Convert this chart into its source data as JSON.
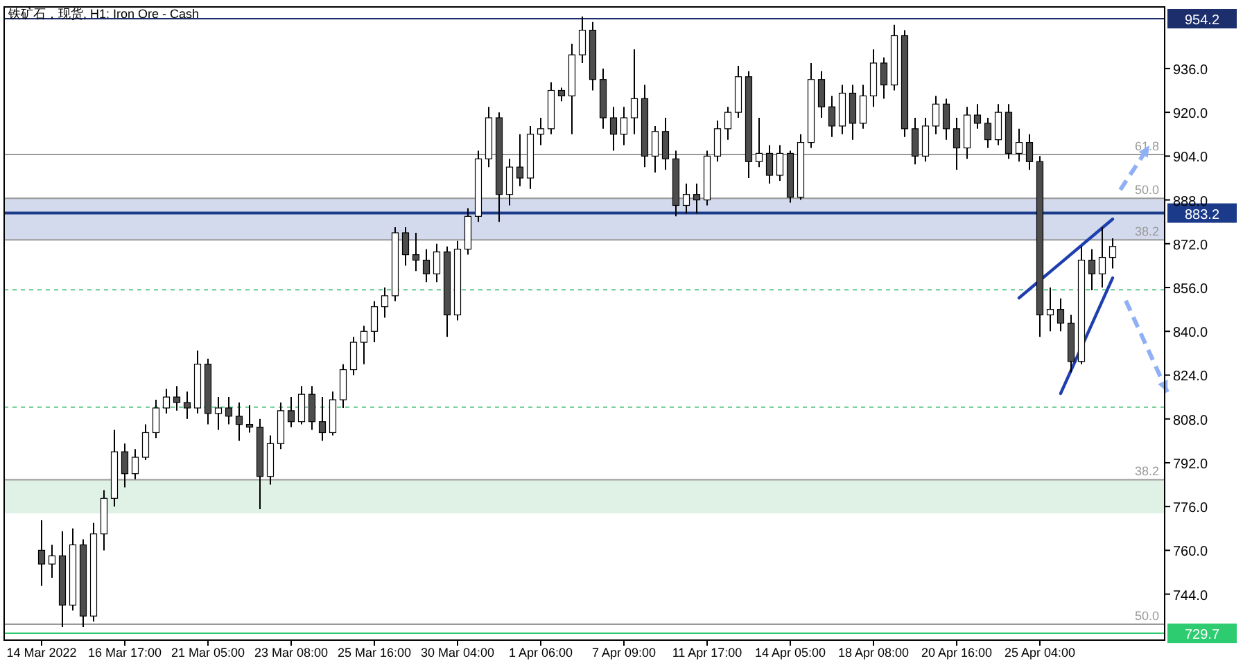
{
  "chart_data": {
    "type": "candlestick",
    "title": "铁矿石，现货, H1: Iron Ore - Cash",
    "categories": [
      "14 Mar 2022",
      null,
      null,
      null,
      null,
      null,
      null,
      null,
      "16 Mar 17:00",
      null,
      null,
      null,
      null,
      null,
      null,
      null,
      "21 Mar 05:00",
      null,
      null,
      null,
      null,
      null,
      null,
      null,
      "23 Mar 08:00",
      null,
      null,
      null,
      null,
      null,
      null,
      null,
      "25 Mar 16:00",
      null,
      null,
      null,
      null,
      null,
      null,
      null,
      "30 Mar 04:00",
      null,
      null,
      null,
      null,
      null,
      null,
      null,
      "1 Apr 06:00",
      null,
      null,
      null,
      null,
      null,
      null,
      null,
      "7 Apr 09:00",
      null,
      null,
      null,
      null,
      null,
      null,
      null,
      "11 Apr 17:00",
      null,
      null,
      null,
      null,
      null,
      null,
      null,
      "14 Apr 05:00",
      null,
      null,
      null,
      null,
      null,
      null,
      null,
      "18 Apr 08:00",
      null,
      null,
      null,
      null,
      null,
      null,
      null,
      "20 Apr 16:00",
      null,
      null,
      null,
      null,
      null,
      null,
      null,
      "25 Apr 04:00",
      null,
      null,
      null,
      null,
      null,
      null,
      null
    ],
    "ohlc": [
      [
        760,
        771,
        747,
        755
      ],
      [
        755,
        762,
        750,
        758
      ],
      [
        758,
        767,
        732,
        740
      ],
      [
        740,
        768,
        738,
        762
      ],
      [
        762,
        764,
        732,
        736
      ],
      [
        736,
        770,
        734,
        766
      ],
      [
        766,
        782,
        760,
        779
      ],
      [
        779,
        804,
        776,
        796
      ],
      [
        796,
        799,
        783,
        788
      ],
      [
        788,
        797,
        786,
        794
      ],
      [
        794,
        806,
        793,
        803
      ],
      [
        803,
        815,
        801,
        812
      ],
      [
        812,
        819,
        810,
        816
      ],
      [
        816,
        820,
        811,
        814
      ],
      [
        814,
        818,
        808,
        812
      ],
      [
        812,
        833,
        810,
        828
      ],
      [
        828,
        830,
        806,
        810
      ],
      [
        810,
        816,
        804,
        812
      ],
      [
        812,
        816,
        806,
        809
      ],
      [
        809,
        814,
        800,
        806
      ],
      [
        806,
        813,
        803,
        805
      ],
      [
        805,
        808,
        775,
        787
      ],
      [
        787,
        802,
        784,
        799
      ],
      [
        799,
        814,
        797,
        811
      ],
      [
        811,
        816,
        805,
        807
      ],
      [
        807,
        820,
        806,
        817
      ],
      [
        817,
        820,
        804,
        807
      ],
      [
        807,
        816,
        800,
        803
      ],
      [
        803,
        818,
        802,
        815
      ],
      [
        815,
        828,
        812,
        826
      ],
      [
        826,
        838,
        824,
        836
      ],
      [
        836,
        842,
        828,
        840
      ],
      [
        840,
        851,
        836,
        849
      ],
      [
        849,
        856,
        845,
        853
      ],
      [
        853,
        878,
        851,
        876
      ],
      [
        876,
        878,
        864,
        868
      ],
      [
        868,
        876,
        862,
        866
      ],
      [
        866,
        870,
        858,
        861
      ],
      [
        861,
        872,
        858,
        869
      ],
      [
        869,
        871,
        838,
        846
      ],
      [
        846,
        873,
        844,
        870
      ],
      [
        870,
        885,
        868,
        882
      ],
      [
        882,
        906,
        880,
        903
      ],
      [
        903,
        922,
        900,
        918
      ],
      [
        918,
        920,
        880,
        890
      ],
      [
        890,
        903,
        886,
        900
      ],
      [
        900,
        912,
        893,
        896
      ],
      [
        896,
        915,
        892,
        912
      ],
      [
        912,
        918,
        908,
        914
      ],
      [
        914,
        931,
        912,
        928
      ],
      [
        928,
        929,
        924,
        926
      ],
      [
        926,
        945,
        912,
        941
      ],
      [
        941,
        955,
        938,
        950
      ],
      [
        950,
        953,
        928,
        932
      ],
      [
        932,
        936,
        914,
        918
      ],
      [
        918,
        922,
        906,
        912
      ],
      [
        912,
        922,
        908,
        918
      ],
      [
        918,
        943,
        912,
        925
      ],
      [
        925,
        930,
        900,
        904
      ],
      [
        904,
        915,
        898,
        913
      ],
      [
        913,
        918,
        899,
        903
      ],
      [
        903,
        906,
        882,
        886
      ],
      [
        886,
        894,
        883,
        890
      ],
      [
        890,
        894,
        883,
        888
      ],
      [
        888,
        906,
        886,
        904
      ],
      [
        904,
        917,
        902,
        914
      ],
      [
        914,
        922,
        910,
        920
      ],
      [
        920,
        937,
        918,
        933
      ],
      [
        933,
        935,
        896,
        902
      ],
      [
        902,
        918,
        900,
        905
      ],
      [
        905,
        908,
        894,
        897
      ],
      [
        897,
        908,
        895,
        905
      ],
      [
        905,
        906,
        887,
        889
      ],
      [
        889,
        912,
        888,
        909
      ],
      [
        909,
        938,
        907,
        932
      ],
      [
        932,
        935,
        918,
        922
      ],
      [
        922,
        926,
        911,
        915
      ],
      [
        915,
        930,
        912,
        927
      ],
      [
        927,
        930,
        910,
        916
      ],
      [
        916,
        930,
        914,
        926
      ],
      [
        926,
        943,
        922,
        938
      ],
      [
        938,
        940,
        925,
        930
      ],
      [
        930,
        952,
        928,
        948
      ],
      [
        948,
        950,
        911,
        914
      ],
      [
        914,
        918,
        901,
        904
      ],
      [
        904,
        918,
        902,
        915
      ],
      [
        915,
        926,
        912,
        923
      ],
      [
        923,
        925,
        910,
        914
      ],
      [
        914,
        918,
        899,
        907
      ],
      [
        907,
        922,
        903,
        919
      ],
      [
        919,
        923,
        914,
        916
      ],
      [
        916,
        918,
        907,
        910
      ],
      [
        910,
        923,
        908,
        920
      ],
      [
        920,
        923,
        903,
        905
      ],
      [
        905,
        914,
        902,
        909
      ],
      [
        909,
        912,
        899,
        902
      ],
      [
        902,
        904,
        838,
        846
      ],
      [
        846,
        856,
        840,
        848
      ],
      [
        848,
        852,
        840,
        843
      ],
      [
        843,
        846,
        825,
        829
      ],
      [
        829,
        871,
        828,
        866
      ],
      [
        866,
        870,
        855,
        861
      ],
      [
        861,
        878,
        856,
        867
      ],
      [
        867,
        874,
        863,
        871
      ]
    ],
    "series": [
      {
        "type": "line",
        "color": "#1f3fae",
        "values": [
          null,
          null,
          null,
          null,
          null,
          null,
          null,
          null,
          null,
          null,
          null,
          null,
          null,
          null,
          null,
          null,
          null,
          null,
          null,
          null,
          null,
          null,
          null,
          null,
          null,
          null,
          null,
          null,
          null,
          null,
          null,
          null,
          null,
          null,
          null,
          null,
          null,
          null,
          null,
          null,
          null,
          null,
          null,
          null,
          null,
          null,
          null,
          null,
          null,
          null,
          null,
          null,
          null,
          null,
          null,
          null,
          null,
          null,
          null,
          null,
          null,
          null,
          null,
          null,
          null,
          null,
          null,
          null,
          null,
          null,
          null,
          null,
          null,
          null,
          null,
          null,
          null,
          null,
          null,
          null,
          null,
          null,
          null,
          null,
          null,
          null,
          null,
          null,
          null,
          null,
          null,
          null,
          null,
          null,
          852.2,
          null,
          null,
          null,
          null,
          null,
          null,
          null,
          null,
          881.0
        ]
      },
      {
        "type": "line",
        "color": "#1f3fae",
        "values": [
          null,
          null,
          null,
          null,
          null,
          null,
          null,
          null,
          null,
          null,
          null,
          null,
          null,
          null,
          null,
          null,
          null,
          null,
          null,
          null,
          null,
          null,
          null,
          null,
          null,
          null,
          null,
          null,
          null,
          null,
          null,
          null,
          null,
          null,
          null,
          null,
          null,
          null,
          null,
          null,
          null,
          null,
          null,
          null,
          null,
          null,
          null,
          null,
          null,
          null,
          null,
          null,
          null,
          null,
          null,
          null,
          null,
          null,
          null,
          null,
          null,
          null,
          null,
          null,
          null,
          null,
          null,
          null,
          null,
          null,
          null,
          null,
          null,
          null,
          null,
          null,
          null,
          null,
          null,
          null,
          null,
          null,
          null,
          null,
          null,
          null,
          null,
          null,
          null,
          null,
          null,
          null,
          null,
          null,
          null,
          null,
          null,
          null,
          817.3,
          null,
          null,
          null,
          null,
          859.5
        ]
      }
    ],
    "annotations": [
      {
        "text": "61.8",
        "y": 904.6
      },
      {
        "text": "50.0",
        "y": 888.6
      },
      {
        "text": "38.2",
        "y": 873.4
      },
      {
        "text": "38.2",
        "y": 785.8
      },
      {
        "text": "50.0",
        "y": 733.0
      }
    ],
    "ylim": [
      727.2,
      958.5
    ],
    "yticks": [
      {
        "value": 744,
        "label": "744.0"
      },
      {
        "value": 760,
        "label": "760.0"
      },
      {
        "value": 776,
        "label": "776.0"
      },
      {
        "value": 792,
        "label": "792.0"
      },
      {
        "value": 808,
        "label": "808.0"
      },
      {
        "value": 824,
        "label": "824.0"
      },
      {
        "value": 840,
        "label": "840.0"
      },
      {
        "value": 856,
        "label": "856.0"
      },
      {
        "value": 872,
        "label": "872.0"
      },
      {
        "value": 888,
        "label": "888.0"
      },
      {
        "value": 904,
        "label": "904.0"
      },
      {
        "value": 920,
        "label": "920.0"
      },
      {
        "value": 936,
        "label": "936.0"
      }
    ],
    "bands": [
      {
        "axis": "y",
        "from": 873.4,
        "to": 888.6,
        "color": "#d3daee"
      },
      {
        "axis": "y",
        "from": 773.5,
        "to": 785.8,
        "color": "#dff2e5"
      }
    ],
    "ref_lines": [
      {
        "axis": "y",
        "value": 954.2,
        "label": "954.2",
        "color": "#1c2e6b"
      },
      {
        "axis": "y",
        "value": 883.2,
        "label": "883.2",
        "color": "#1c3a8a"
      },
      {
        "axis": "y",
        "value": 729.7,
        "label": "729.7",
        "color": "#2ecc71"
      },
      {
        "axis": "y",
        "value": 904.6,
        "color": "#999999"
      },
      {
        "axis": "y",
        "value": 888.6,
        "color": "#999999"
      },
      {
        "axis": "y",
        "value": 873.4,
        "color": "#999999"
      },
      {
        "axis": "y",
        "value": 785.8,
        "color": "#999999"
      },
      {
        "axis": "y",
        "value": 733.0,
        "color": "#999999"
      },
      {
        "axis": "y",
        "value": 855.2,
        "color": "#5fc98a",
        "line_style": "dashed"
      },
      {
        "axis": "y",
        "value": 812.3,
        "color": "#5fc98a",
        "line_style": "dashed"
      }
    ],
    "grid": false
  }
}
